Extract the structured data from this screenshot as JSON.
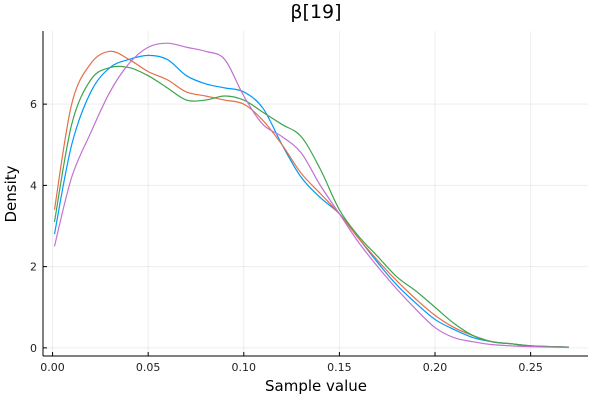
{
  "chart_data": {
    "type": "line",
    "title": "β[19]",
    "xlabel": "Sample value",
    "ylabel": "Density",
    "xlim": [
      -0.005,
      0.28
    ],
    "ylim": [
      -0.2,
      7.8
    ],
    "xticks": [
      0.0,
      0.05,
      0.1,
      0.15,
      0.2,
      0.25
    ],
    "xtick_labels": [
      "0.00",
      "0.05",
      "0.10",
      "0.15",
      "0.20",
      "0.25"
    ],
    "yticks": [
      0,
      2,
      4,
      6
    ],
    "ytick_labels": [
      "0",
      "2",
      "4",
      "6"
    ],
    "grid": true,
    "legend": "none",
    "series": [
      {
        "color": "#009AFA",
        "x": [
          0.001,
          0.01,
          0.02,
          0.03,
          0.04,
          0.05,
          0.06,
          0.07,
          0.08,
          0.09,
          0.1,
          0.11,
          0.12,
          0.13,
          0.14,
          0.15,
          0.16,
          0.17,
          0.18,
          0.19,
          0.2,
          0.21,
          0.22,
          0.23,
          0.24,
          0.25,
          0.27
        ],
        "y": [
          2.8,
          5.0,
          6.3,
          6.9,
          7.1,
          7.2,
          7.1,
          6.7,
          6.5,
          6.4,
          6.3,
          5.9,
          5.0,
          4.2,
          3.7,
          3.3,
          2.7,
          2.1,
          1.55,
          1.1,
          0.7,
          0.45,
          0.25,
          0.15,
          0.1,
          0.05,
          0.02
        ]
      },
      {
        "color": "#E36F47",
        "x": [
          0.001,
          0.01,
          0.02,
          0.03,
          0.04,
          0.05,
          0.06,
          0.07,
          0.08,
          0.09,
          0.1,
          0.11,
          0.12,
          0.13,
          0.14,
          0.15,
          0.16,
          0.17,
          0.18,
          0.19,
          0.2,
          0.21,
          0.22,
          0.23,
          0.24,
          0.25,
          0.27
        ],
        "y": [
          3.4,
          6.0,
          7.0,
          7.3,
          7.1,
          6.8,
          6.6,
          6.3,
          6.2,
          6.1,
          6.0,
          5.6,
          5.0,
          4.3,
          3.8,
          3.3,
          2.7,
          2.15,
          1.65,
          1.2,
          0.8,
          0.5,
          0.3,
          0.15,
          0.1,
          0.05,
          0.02
        ]
      },
      {
        "color": "#3EA44E",
        "x": [
          0.001,
          0.01,
          0.02,
          0.03,
          0.04,
          0.05,
          0.06,
          0.07,
          0.08,
          0.09,
          0.1,
          0.11,
          0.12,
          0.13,
          0.14,
          0.15,
          0.16,
          0.17,
          0.18,
          0.19,
          0.2,
          0.21,
          0.22,
          0.23,
          0.24,
          0.25,
          0.27
        ],
        "y": [
          3.1,
          5.5,
          6.6,
          6.9,
          6.9,
          6.7,
          6.4,
          6.1,
          6.1,
          6.2,
          6.1,
          5.8,
          5.5,
          5.2,
          4.4,
          3.4,
          2.75,
          2.25,
          1.75,
          1.4,
          1.0,
          0.6,
          0.3,
          0.15,
          0.1,
          0.05,
          0.02
        ]
      },
      {
        "color": "#C271D2",
        "x": [
          0.001,
          0.01,
          0.02,
          0.03,
          0.04,
          0.05,
          0.06,
          0.07,
          0.08,
          0.09,
          0.1,
          0.11,
          0.12,
          0.13,
          0.14,
          0.15,
          0.16,
          0.17,
          0.18,
          0.19,
          0.2,
          0.21,
          0.22,
          0.23,
          0.24,
          0.25,
          0.27
        ],
        "y": [
          2.5,
          4.2,
          5.3,
          6.3,
          7.0,
          7.4,
          7.5,
          7.4,
          7.3,
          7.1,
          6.2,
          5.5,
          5.2,
          4.8,
          4.0,
          3.3,
          2.6,
          2.0,
          1.45,
          0.95,
          0.5,
          0.25,
          0.15,
          0.08,
          0.05,
          0.03,
          0.01
        ]
      }
    ]
  }
}
